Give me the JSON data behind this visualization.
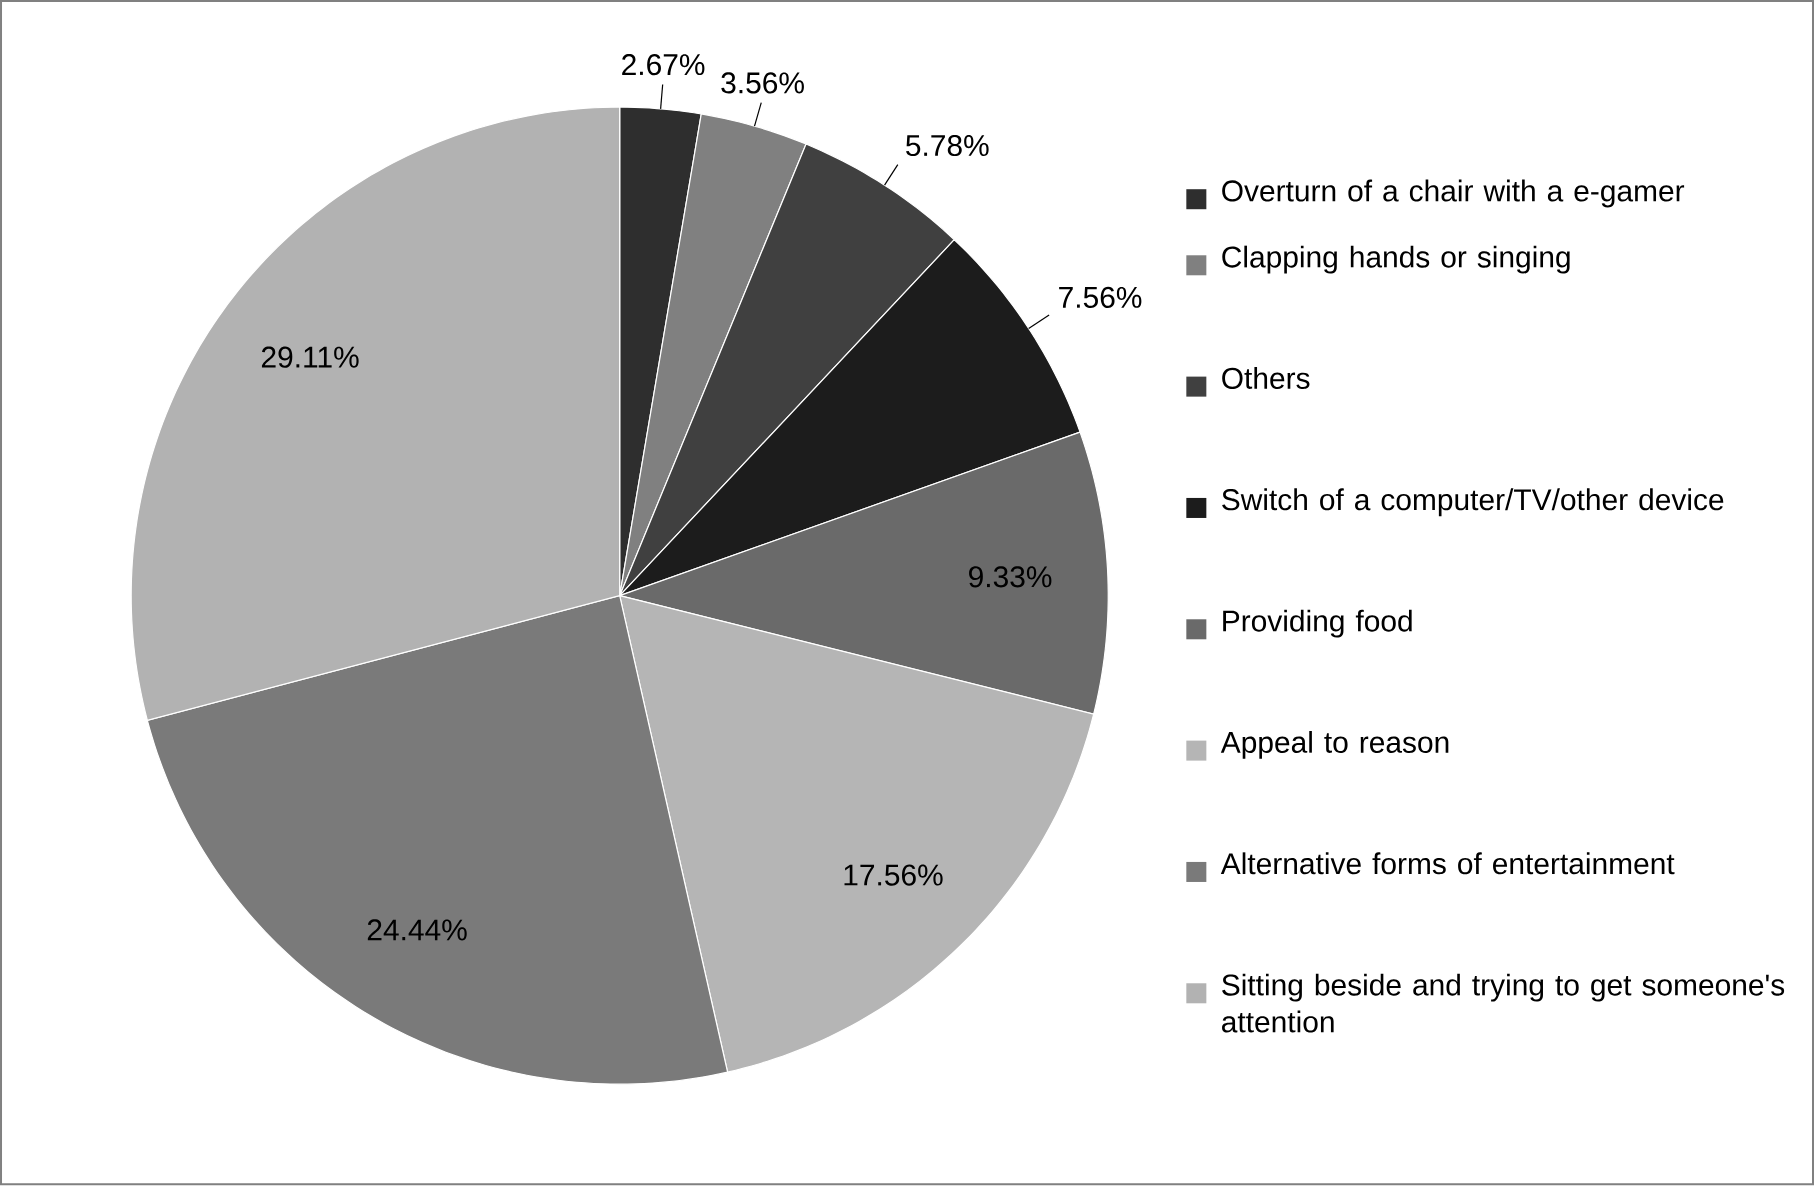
{
  "chart_data": {
    "type": "pie",
    "categories": [
      "Overturn of a chair with a e-gamer",
      "Clapping hands or singing",
      "Others",
      "Switch of a computer/TV/other device",
      "Providing food",
      "Appeal to reason",
      "Alternative forms of entertainment",
      "Sitting beside and trying to get someone's attention"
    ],
    "values": [
      2.67,
      3.56,
      5.78,
      7.56,
      9.33,
      17.56,
      24.44,
      29.11
    ],
    "value_labels": [
      "2.67%",
      "3.56%",
      "5.78%",
      "7.56%",
      "9.33%",
      "17.56%",
      "24.44%",
      "29.11%"
    ],
    "colors": [
      "#2e2e2e",
      "#808080",
      "#404040",
      "#1c1c1c",
      "#6a6a6a",
      "#b5b5b5",
      "#7a7a7a",
      "#b2b2b2"
    ],
    "legend": "right"
  }
}
